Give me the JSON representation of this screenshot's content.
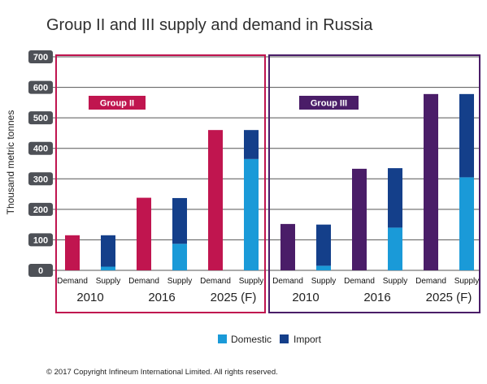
{
  "colors": {
    "group_ii": "#c0154f",
    "group_iii": "#4a1d68",
    "domestic": "#1a9ad8",
    "import": "#143f8a",
    "tick_box": "#4e5157",
    "gridline": "#555555"
  },
  "chart_data": {
    "type": "bar",
    "stacked": true,
    "title": "Group II and III supply and demand in Russia",
    "ylabel": "Thousand metric tonnes",
    "ylim": [
      0,
      700
    ],
    "yticks": [
      0,
      100,
      200,
      300,
      400,
      500,
      600,
      700
    ],
    "grid": true,
    "legend": {
      "position": "bottom",
      "entries": [
        {
          "name": "Domestic",
          "color": "#1a9ad8"
        },
        {
          "name": "Import",
          "color": "#143f8a"
        }
      ]
    },
    "panels": [
      {
        "label": "Group II",
        "color": "#c0154f",
        "years": [
          "2010",
          "2016",
          "2025 (F)"
        ],
        "categories": [
          "Demand",
          "Supply",
          "Demand",
          "Supply",
          "Demand",
          "Supply"
        ],
        "series": [
          {
            "name": "Demand",
            "color": "#c0154f",
            "values": [
              115,
              null,
              238,
              null,
              460,
              null
            ]
          },
          {
            "name": "Domestic",
            "color": "#1a9ad8",
            "values": [
              null,
              12,
              null,
              87,
              null,
              365
            ]
          },
          {
            "name": "Import",
            "color": "#143f8a",
            "values": [
              null,
              103,
              null,
              150,
              null,
              95
            ]
          }
        ]
      },
      {
        "label": "Group III",
        "color": "#4a1d68",
        "years": [
          "2010",
          "2016",
          "2025 (F)"
        ],
        "categories": [
          "Demand",
          "Supply",
          "Demand",
          "Supply",
          "Demand",
          "Supply"
        ],
        "series": [
          {
            "name": "Demand",
            "color": "#4a1d68",
            "values": [
              152,
              null,
              333,
              null,
              578,
              null
            ]
          },
          {
            "name": "Domestic",
            "color": "#1a9ad8",
            "values": [
              null,
              15,
              null,
              140,
              null,
              305
            ]
          },
          {
            "name": "Import",
            "color": "#143f8a",
            "values": [
              null,
              135,
              null,
              195,
              null,
              273
            ]
          }
        ]
      }
    ]
  },
  "copyright": "© 2017 Copyright Infineum International Limited. All rights reserved."
}
